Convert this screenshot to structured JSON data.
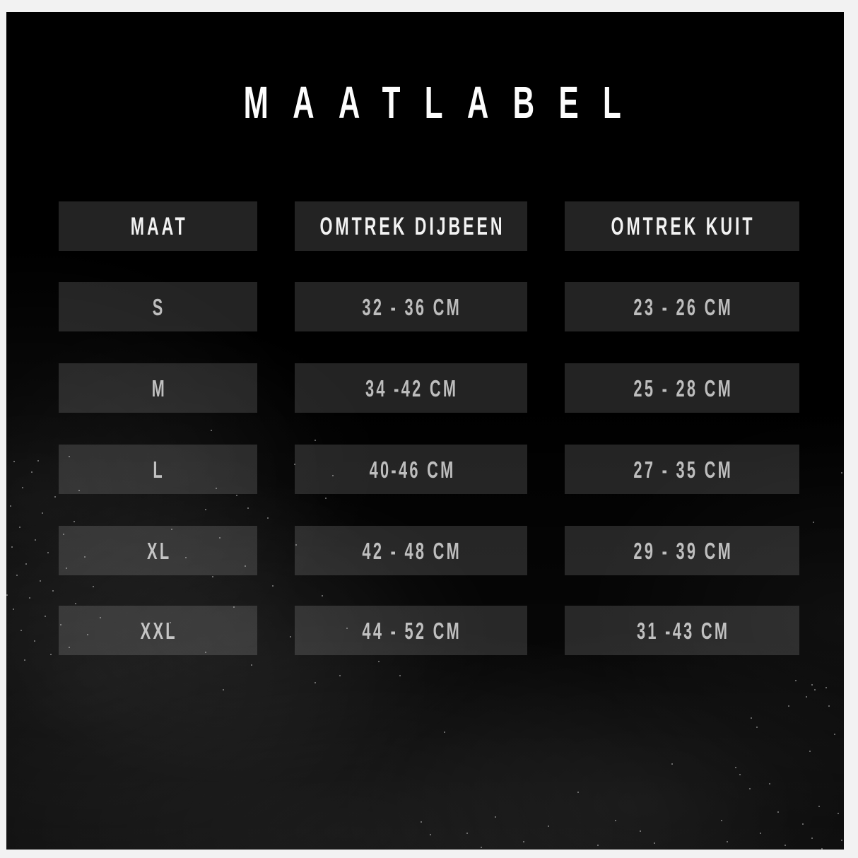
{
  "title": "MAATLABEL",
  "chart_data": {
    "type": "table",
    "title": "MAATLABEL",
    "columns": [
      "MAAT",
      "OMTREK DIJBEEN",
      "OMTREK KUIT"
    ],
    "rows": [
      [
        "S",
        "32 - 36 CM",
        "23 - 26 CM"
      ],
      [
        "M",
        "34 -42 CM",
        "25 - 28 CM"
      ],
      [
        "L",
        "40-46 CM",
        "27 - 35 CM"
      ],
      [
        "XL",
        "42 - 48 CM",
        "29 - 39 CM"
      ],
      [
        "XXL",
        "44 - 52 CM",
        "31 -43 CM"
      ]
    ],
    "unit": "CM"
  },
  "colors": {
    "frame": "#f2f2f2",
    "background": "#000000",
    "cell_background": "#232323",
    "title_text": "#fdfdfd",
    "header_text": "#f2f2f2",
    "data_text": "#bdbdbd"
  }
}
